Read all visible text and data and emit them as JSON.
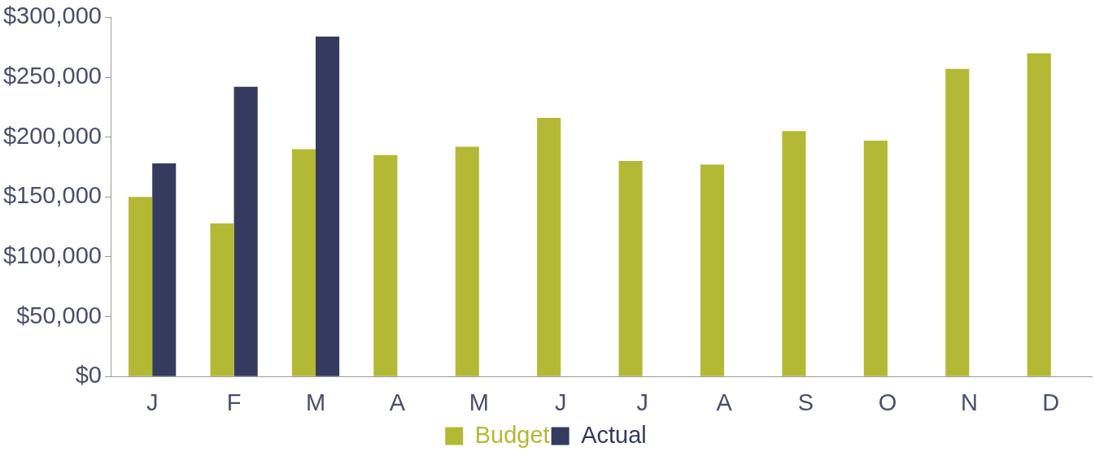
{
  "chart_data": {
    "type": "bar",
    "categories": [
      "J",
      "F",
      "M",
      "A",
      "M",
      "J",
      "J",
      "A",
      "S",
      "O",
      "N",
      "D"
    ],
    "series": [
      {
        "name": "Budget",
        "color": "#b3b934",
        "values": [
          150000,
          128000,
          190000,
          185000,
          192000,
          216000,
          180000,
          177000,
          205000,
          197000,
          257000,
          270000
        ]
      },
      {
        "name": "Actual",
        "color": "#343b5e",
        "values": [
          178000,
          242000,
          284000,
          null,
          null,
          null,
          null,
          null,
          null,
          null,
          null,
          null
        ]
      }
    ],
    "ylim": [
      0,
      300000
    ],
    "yticks": [
      {
        "value": 0,
        "label": "$0"
      },
      {
        "value": 50000,
        "label": "$50,000"
      },
      {
        "value": 100000,
        "label": "$100,000"
      },
      {
        "value": 150000,
        "label": "$150,000"
      },
      {
        "value": 200000,
        "label": "$200,000"
      },
      {
        "value": 250000,
        "label": "$250,000"
      },
      {
        "value": 300000,
        "label": "$300,000"
      }
    ],
    "grid": false,
    "legend": "bottom"
  }
}
